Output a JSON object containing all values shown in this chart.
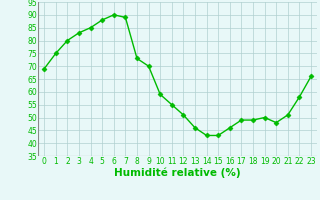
{
  "x": [
    0,
    1,
    2,
    3,
    4,
    5,
    6,
    7,
    8,
    9,
    10,
    11,
    12,
    13,
    14,
    15,
    16,
    17,
    18,
    19,
    20,
    21,
    22,
    23
  ],
  "y": [
    69,
    75,
    80,
    83,
    85,
    88,
    90,
    89,
    73,
    70,
    59,
    55,
    51,
    46,
    43,
    43,
    46,
    49,
    49,
    50,
    48,
    51,
    58,
    66
  ],
  "line_color": "#00bb00",
  "marker": "D",
  "marker_size": 2.5,
  "bg_color": "#e8f8f8",
  "grid_color": "#b0d0d0",
  "xlabel": "Humidité relative (%)",
  "xlabel_color": "#00bb00",
  "ylim": [
    35,
    95
  ],
  "xlim": [
    -0.5,
    23.5
  ],
  "yticks": [
    35,
    40,
    45,
    50,
    55,
    60,
    65,
    70,
    75,
    80,
    85,
    90,
    95
  ],
  "xticks": [
    0,
    1,
    2,
    3,
    4,
    5,
    6,
    7,
    8,
    9,
    10,
    11,
    12,
    13,
    14,
    15,
    16,
    17,
    18,
    19,
    20,
    21,
    22,
    23
  ],
  "tick_fontsize": 5.5,
  "xlabel_fontsize": 7.5,
  "linewidth": 1.0
}
